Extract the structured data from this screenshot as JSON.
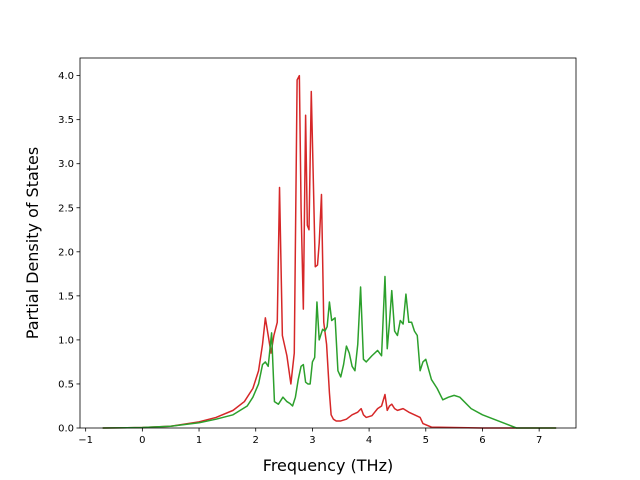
{
  "chart_data": {
    "type": "line",
    "xlabel": "Frequency (THz)",
    "ylabel": "Partial Density of States",
    "xlim": [
      -1.1,
      7.65
    ],
    "ylim": [
      0.0,
      4.2
    ],
    "xticks": [
      -1,
      0,
      1,
      2,
      3,
      4,
      5,
      6,
      7
    ],
    "yticks": [
      0.0,
      0.5,
      1.0,
      1.5,
      2.0,
      2.5,
      3.0,
      3.5,
      4.0
    ],
    "xtick_labels": [
      "−1",
      "0",
      "1",
      "2",
      "3",
      "4",
      "5",
      "6",
      "7"
    ],
    "ytick_labels": [
      "0.0",
      "0.5",
      "1.0",
      "1.5",
      "2.0",
      "2.5",
      "3.0",
      "3.5",
      "4.0"
    ],
    "grid": false,
    "series": [
      {
        "color": "#d62728",
        "x": [
          -0.7,
          0.0,
          0.5,
          1.0,
          1.3,
          1.6,
          1.8,
          1.95,
          2.05,
          2.12,
          2.17,
          2.22,
          2.27,
          2.32,
          2.38,
          2.42,
          2.47,
          2.55,
          2.62,
          2.68,
          2.73,
          2.77,
          2.8,
          2.84,
          2.88,
          2.91,
          2.94,
          2.98,
          3.02,
          3.05,
          3.09,
          3.12,
          3.16,
          3.2,
          3.25,
          3.3,
          3.33,
          3.37,
          3.42,
          3.5,
          3.6,
          3.7,
          3.8,
          3.86,
          3.9,
          3.95,
          4.05,
          4.15,
          4.22,
          4.28,
          4.32,
          4.36,
          4.4,
          4.45,
          4.5,
          4.6,
          4.7,
          4.8,
          4.9,
          4.95,
          5.1,
          6.0,
          7.3
        ],
        "y": [
          0.0,
          0.005,
          0.02,
          0.07,
          0.12,
          0.2,
          0.3,
          0.45,
          0.65,
          0.95,
          1.25,
          1.05,
          0.85,
          1.05,
          1.2,
          2.73,
          1.05,
          0.82,
          0.5,
          0.85,
          3.95,
          4.0,
          2.5,
          1.35,
          3.55,
          2.3,
          2.25,
          3.82,
          2.7,
          1.83,
          1.85,
          2.1,
          2.65,
          1.2,
          0.95,
          0.4,
          0.15,
          0.1,
          0.08,
          0.08,
          0.1,
          0.15,
          0.18,
          0.22,
          0.15,
          0.12,
          0.14,
          0.22,
          0.25,
          0.38,
          0.2,
          0.25,
          0.27,
          0.22,
          0.2,
          0.22,
          0.18,
          0.15,
          0.12,
          0.05,
          0.01,
          0.0,
          0.0
        ]
      },
      {
        "color": "#2ca02c",
        "x": [
          -0.7,
          0.0,
          0.5,
          1.0,
          1.3,
          1.6,
          1.85,
          1.95,
          2.05,
          2.12,
          2.17,
          2.22,
          2.28,
          2.33,
          2.4,
          2.48,
          2.55,
          2.6,
          2.65,
          2.7,
          2.75,
          2.8,
          2.84,
          2.88,
          2.92,
          2.96,
          3.0,
          3.04,
          3.08,
          3.12,
          3.18,
          3.22,
          3.26,
          3.3,
          3.34,
          3.4,
          3.45,
          3.5,
          3.55,
          3.6,
          3.65,
          3.7,
          3.75,
          3.8,
          3.85,
          3.9,
          3.95,
          4.05,
          4.15,
          4.22,
          4.28,
          4.32,
          4.36,
          4.4,
          4.45,
          4.5,
          4.55,
          4.6,
          4.65,
          4.7,
          4.75,
          4.8,
          4.85,
          4.9,
          4.95,
          5.0,
          5.1,
          5.2,
          5.3,
          5.4,
          5.5,
          5.6,
          5.8,
          6.0,
          6.2,
          6.4,
          6.6,
          7.3
        ],
        "y": [
          0.0,
          0.005,
          0.02,
          0.06,
          0.1,
          0.15,
          0.25,
          0.35,
          0.5,
          0.72,
          0.75,
          0.7,
          1.08,
          0.3,
          0.27,
          0.35,
          0.3,
          0.28,
          0.25,
          0.35,
          0.55,
          0.7,
          0.72,
          0.52,
          0.5,
          0.5,
          0.75,
          0.8,
          1.43,
          1.0,
          1.12,
          1.1,
          1.15,
          1.43,
          1.22,
          1.25,
          0.65,
          0.58,
          0.72,
          0.93,
          0.85,
          0.7,
          0.65,
          0.95,
          1.6,
          0.78,
          0.75,
          0.82,
          0.88,
          0.82,
          1.72,
          0.9,
          1.2,
          1.56,
          1.1,
          1.05,
          1.22,
          1.18,
          1.52,
          1.2,
          1.2,
          1.1,
          1.05,
          0.65,
          0.75,
          0.78,
          0.55,
          0.45,
          0.32,
          0.35,
          0.37,
          0.35,
          0.22,
          0.15,
          0.1,
          0.05,
          0.0,
          0.0
        ]
      }
    ]
  }
}
